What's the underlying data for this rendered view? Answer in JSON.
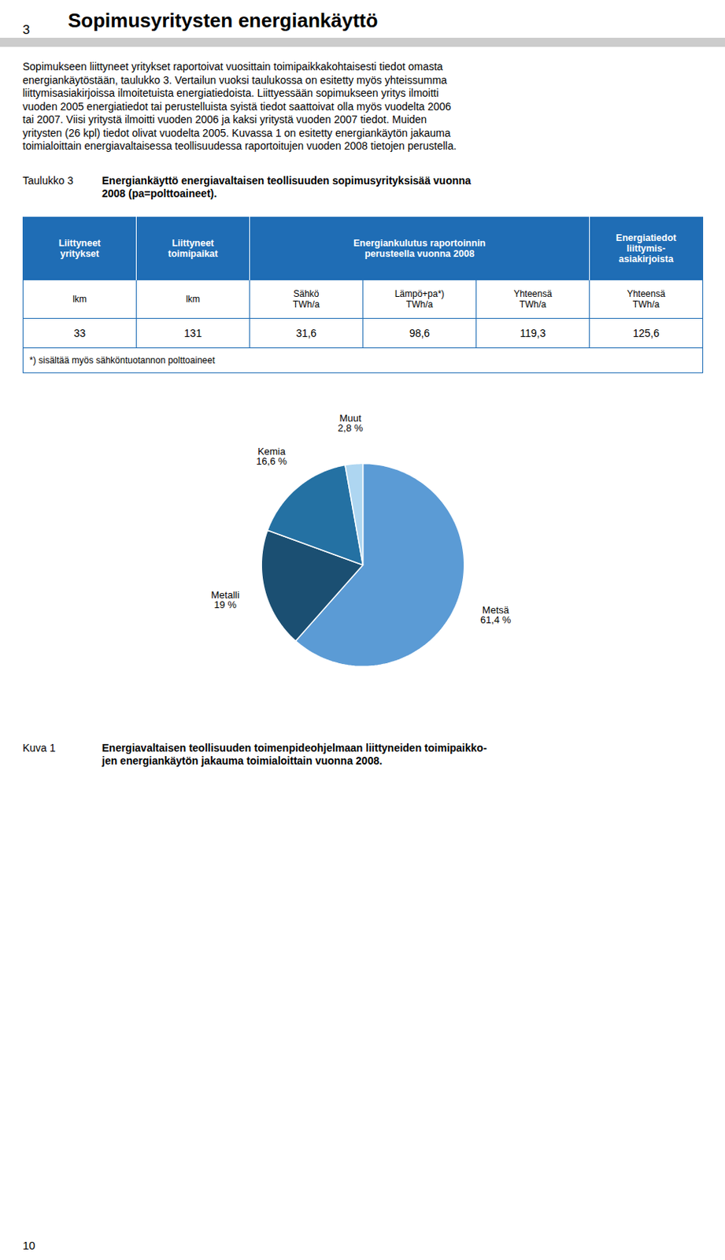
{
  "page": {
    "page_number_top": "3",
    "section_title": "Sopimusyritysten energiankäyttö",
    "body_text_lines": [
      "Sopimukseen liittyneet yritykset raportoivat vuosittain toimipaikkakohtaisesti tiedot omasta",
      "energiankäytöstään, taulukko 3. Vertailun vuoksi taulukossa on esitetty myös yhteissumma",
      "liittymisasiakirjoissa ilmoitetuista energiatiedoista. Liittyessään sopimukseen yritys ilmoitti",
      "vuoden 2005 energiatiedot tai perustelluista syistä tiedot saattoivat olla myös vuodelta 2006",
      "tai 2007. Viisi yritystä ilmoitti vuoden 2006 ja kaksi yritystä vuoden 2007 tiedot. Muiden",
      "yritysten (26 kpl) tiedot olivat vuodelta 2005. Kuvassa 1 on esitetty energiankäytön jakauma",
      "toimialoittain energiavaltaisessa teollisuudessa raportoitujen vuoden 2008 tietojen perustella."
    ],
    "table_label": "Taulukko 3",
    "table_title_lines": [
      "Energiankäyttö energiavaltaisen teollisuuden sopimusyrityksisää vuonna",
      "2008 (pa=polttoaineet)."
    ],
    "table_headers": [
      "Liittyneet\nyritykset",
      "Liittyneet\ntoimipaikat",
      "Energiankulutus raportoinnin\nperusteella vuonna 2008",
      "Energiatiedot\nliittymis-\nasiakirjoista"
    ],
    "table_subheaders": [
      "lkm",
      "lkm",
      "Sähkö\nTWh/a",
      "Lämpö+pa*)\nTWh/a",
      "Yhteensä\nTWh/a",
      "Yhteensä\nTWh/a"
    ],
    "table_values": [
      "33",
      "131",
      "31,6",
      "98,6",
      "119,3",
      "125,6"
    ],
    "table_footnote": "*) sisältää myös sähköntuotannon polttoaineet",
    "figure_label": "Kuva 1",
    "figure_caption_lines": [
      "Energiavaltaisen teollisuuden toimenpideohjelmaan liittyneiden toimipaikko-",
      "jen energiankäytön jakauma toimialoittain vuonna 2008."
    ],
    "page_number_bottom": "10"
  },
  "chart_data": {
    "type": "pie",
    "categories": [
      "Metsä",
      "Metalli",
      "Kemia",
      "Muut"
    ],
    "values": [
      61.4,
      19.0,
      16.6,
      2.8
    ],
    "value_labels": [
      "61,4 %",
      "19 %",
      "16,6 %",
      "2,8 %"
    ],
    "colors": [
      "#5B9BD5",
      "#1B4F72",
      "#2471A3",
      "#AED6F1"
    ],
    "data_labels": true
  }
}
